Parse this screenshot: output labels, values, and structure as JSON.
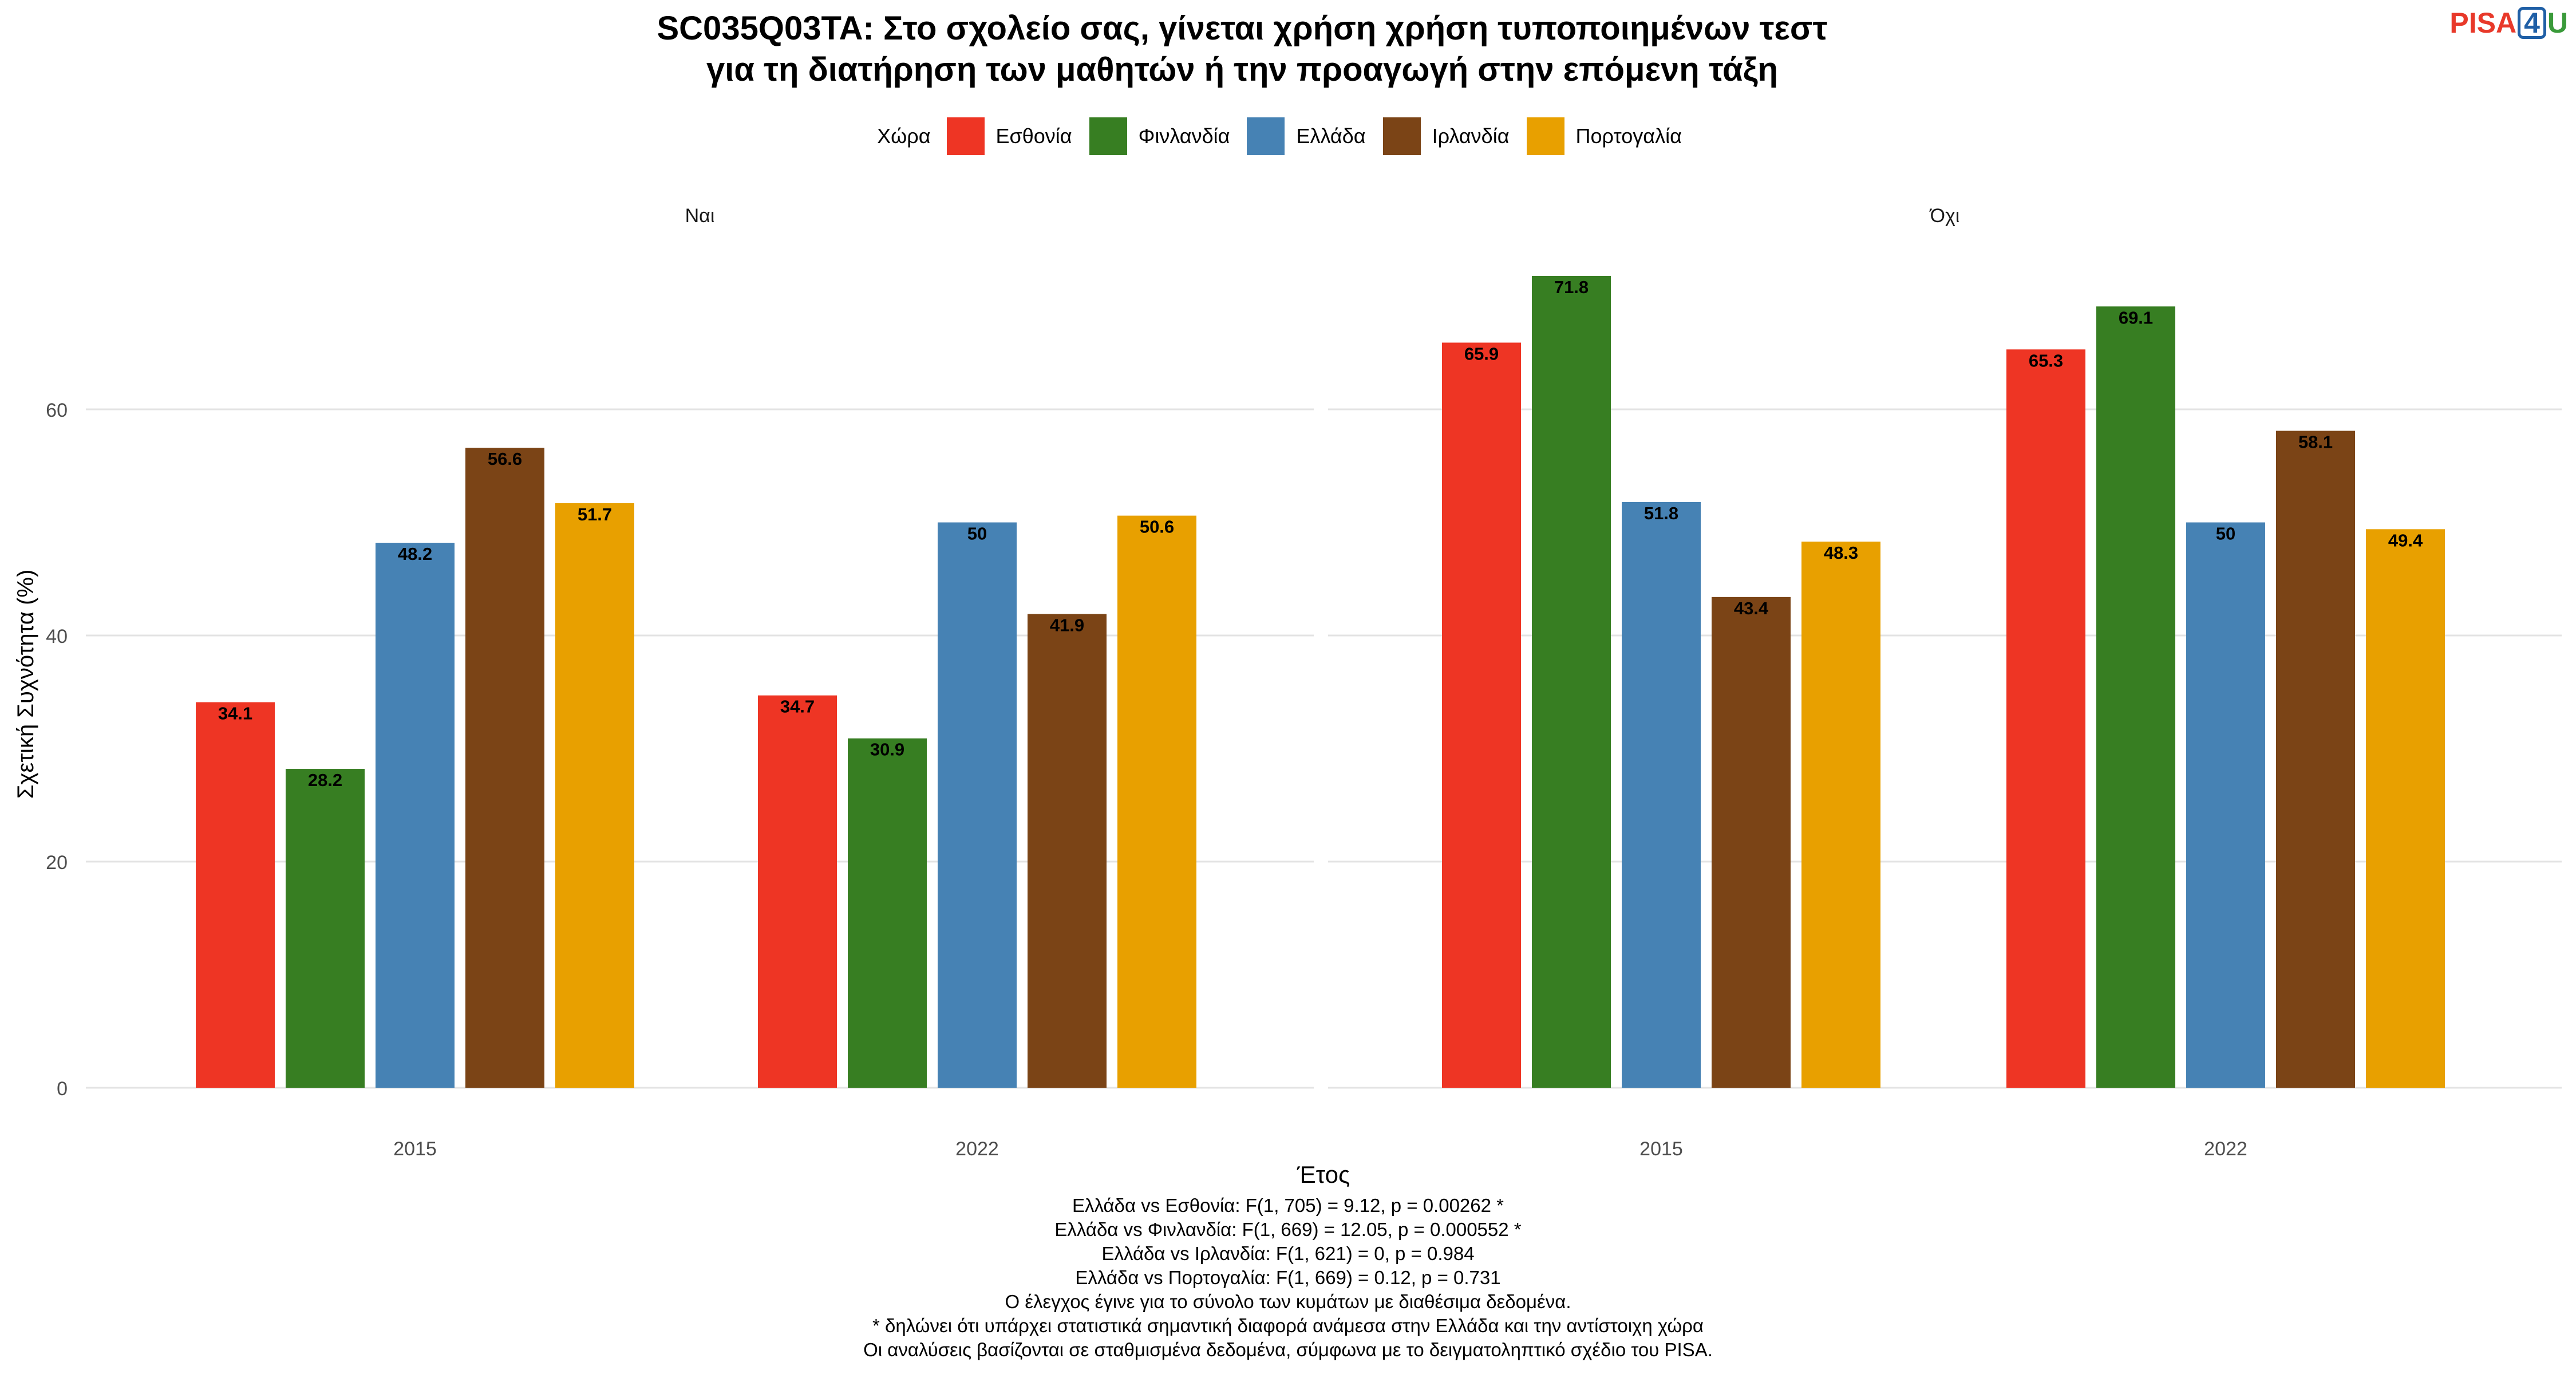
{
  "title_lines": [
    "SC035Q03TA: Στο σχολείο σας, γίνεται χρήση χρήση τυποποιημένων τεστ",
    "για τη διατήρηση των μαθητών ή την προαγωγή στην επόμενη τάξη"
  ],
  "logo": {
    "part1": "PISA",
    "part2": "4",
    "part3": "U"
  },
  "legend_title": "Χώρα",
  "chart_data": {
    "type": "bar",
    "title": "SC035Q03TA: Στο σχολείο σας, γίνεται χρήση χρήση τυποποιημένων τεστ για τη διατήρηση των μαθητών ή την προαγωγή στην επόμενη τάξη",
    "xlabel": "Έτος",
    "ylabel": "Σχετική Συχνότητα (%)",
    "ylim": [
      0,
      72
    ],
    "yticks": [
      0,
      20,
      40,
      60
    ],
    "grid": true,
    "legend_position": "top",
    "categories": [
      "2015",
      "2022"
    ],
    "facets": [
      {
        "label": "Ναι",
        "series": [
          {
            "name": "Εσθονία",
            "color": "#ee3524",
            "values": [
              34.1,
              34.7
            ]
          },
          {
            "name": "Φινλανδία",
            "color": "#377e22",
            "values": [
              28.2,
              30.9
            ]
          },
          {
            "name": "Ελλάδα",
            "color": "#4682b4",
            "values": [
              48.2,
              50
            ]
          },
          {
            "name": "Ιρλανδία",
            "color": "#7b4416",
            "values": [
              56.6,
              41.9
            ]
          },
          {
            "name": "Πορτογαλία",
            "color": "#e8a000",
            "values": [
              51.7,
              50.6
            ]
          }
        ]
      },
      {
        "label": "Όχι",
        "series": [
          {
            "name": "Εσθονία",
            "color": "#ee3524",
            "values": [
              65.9,
              65.3
            ]
          },
          {
            "name": "Φινλανδία",
            "color": "#377e22",
            "values": [
              71.8,
              69.1
            ]
          },
          {
            "name": "Ελλάδα",
            "color": "#4682b4",
            "values": [
              51.8,
              50
            ]
          },
          {
            "name": "Ιρλανδία",
            "color": "#7b4416",
            "values": [
              43.4,
              58.1
            ]
          },
          {
            "name": "Πορτογαλία",
            "color": "#e8a000",
            "values": [
              48.3,
              49.4
            ]
          }
        ]
      }
    ]
  },
  "caption_lines": [
    "Ελλάδα vs Εσθονία: F(1, 705) = 9.12, p = 0.00262 *",
    "Ελλάδα vs Φινλανδία: F(1, 669) = 12.05, p = 0.000552 *",
    "Ελλάδα vs Ιρλανδία: F(1, 621) = 0, p = 0.984",
    "Ελλάδα vs Πορτογαλία: F(1, 669) = 0.12, p = 0.731",
    "Ο έλεγχος έγινε για το σύνολο των κυμάτων με διαθέσιμα δεδομένα.",
    "* δηλώνει ότι υπάρχει στατιστικά σημαντική διαφορά ανάμεσα στην Ελλάδα και την αντίστοιχη χώρα",
    "Οι αναλύσεις βασίζονται σε σταθμισμένα δεδομένα, σύμφωνα με το δειγματοληπτικό σχέδιο του PISA."
  ]
}
